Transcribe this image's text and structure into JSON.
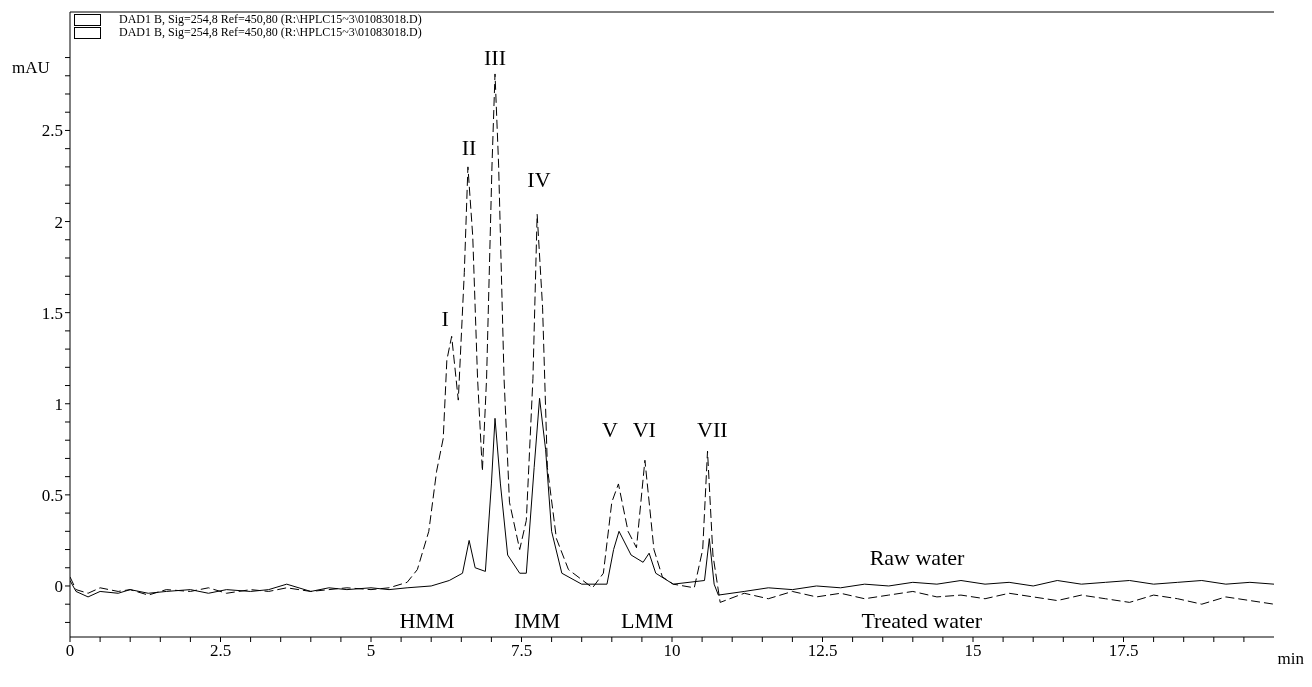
{
  "chart_data": {
    "type": "line",
    "xlabel": "min",
    "ylabel": "mAU",
    "legend": "top left",
    "grid": false,
    "marker": "none",
    "xlim": [
      0,
      20
    ],
    "ylim": [
      -0.28,
      3.15
    ],
    "xticks": [
      0,
      {
        "value": 0.5,
        "label": null
      },
      {
        "value": 1,
        "label": null
      },
      {
        "value": 1.5,
        "label": null
      },
      {
        "value": 2,
        "label": null
      },
      2.5,
      {
        "value": 3,
        "label": null
      },
      {
        "value": 3.5,
        "label": null
      },
      {
        "value": 4,
        "label": null
      },
      {
        "value": 4.5,
        "label": null
      },
      5,
      {
        "value": 5.5,
        "label": null
      },
      {
        "value": 6,
        "label": null
      },
      {
        "value": 6.5,
        "label": null
      },
      {
        "value": 7,
        "label": null
      },
      7.5,
      {
        "value": 8,
        "label": null
      },
      {
        "value": 8.5,
        "label": null
      },
      {
        "value": 9,
        "label": null
      },
      {
        "value": 9.5,
        "label": null
      },
      10,
      {
        "value": 10.5,
        "label": null
      },
      {
        "value": 11,
        "label": null
      },
      {
        "value": 11.5,
        "label": null
      },
      {
        "value": 12,
        "label": null
      },
      12.5,
      {
        "value": 13,
        "label": null
      },
      {
        "value": 13.5,
        "label": null
      },
      {
        "value": 14,
        "label": null
      },
      {
        "value": 14.5,
        "label": null
      },
      15,
      {
        "value": 15.5,
        "label": null
      },
      {
        "value": 16,
        "label": null
      },
      {
        "value": 16.5,
        "label": null
      },
      {
        "value": 17,
        "label": null
      },
      17.5,
      {
        "value": 18,
        "label": null
      },
      {
        "value": 18.5,
        "label": null
      },
      {
        "value": 19,
        "label": null
      },
      {
        "value": 19.5,
        "label": null
      }
    ],
    "yticks": [
      {
        "value": -0.2,
        "label": null
      },
      {
        "value": -0.1,
        "label": null
      },
      0,
      {
        "value": 0.1,
        "label": null
      },
      {
        "value": 0.2,
        "label": null
      },
      {
        "value": 0.3,
        "label": null
      },
      {
        "value": 0.4,
        "label": null
      },
      0.5,
      {
        "value": 0.6,
        "label": null
      },
      {
        "value": 0.7,
        "label": null
      },
      {
        "value": 0.8,
        "label": null
      },
      {
        "value": 0.9,
        "label": null
      },
      1,
      {
        "value": 1.1,
        "label": null
      },
      {
        "value": 1.2,
        "label": null
      },
      {
        "value": 1.3,
        "label": null
      },
      {
        "value": 1.4,
        "label": null
      },
      1.5,
      {
        "value": 1.6,
        "label": null
      },
      {
        "value": 1.7,
        "label": null
      },
      {
        "value": 1.8,
        "label": null
      },
      {
        "value": 1.9,
        "label": null
      },
      2,
      {
        "value": 2.1,
        "label": null
      },
      {
        "value": 2.2,
        "label": null
      },
      {
        "value": 2.3,
        "label": null
      },
      {
        "value": 2.4,
        "label": null
      },
      2.5,
      {
        "value": 2.6,
        "label": null
      },
      {
        "value": 2.7,
        "label": null
      },
      {
        "value": 2.8,
        "label": null
      },
      {
        "value": 2.9,
        "label": null
      }
    ],
    "series": [
      {
        "name": "DAD1 B, Sig=254,8 Ref=450,80 (R:\\HPLC15~3\\01083018.D)",
        "color": "#000000",
        "line_style": "dashed",
        "x": [
          0,
          0.1,
          0.3,
          0.5,
          0.8,
          1.0,
          1.3,
          1.6,
          2.0,
          2.3,
          2.6,
          3.0,
          3.3,
          3.6,
          4.0,
          4.3,
          4.6,
          5.0,
          5.3,
          5.6,
          5.77,
          5.96,
          6.09,
          6.2,
          6.26,
          6.34,
          6.45,
          6.55,
          6.61,
          6.69,
          6.77,
          6.85,
          6.92,
          7.01,
          7.06,
          7.12,
          7.21,
          7.3,
          7.47,
          7.58,
          7.69,
          7.76,
          7.85,
          7.93,
          8.08,
          8.28,
          8.68,
          8.86,
          9.0,
          9.11,
          9.27,
          9.41,
          9.55,
          9.7,
          9.84,
          10.02,
          10.37,
          10.51,
          10.59,
          10.68,
          10.8,
          11.2,
          11.6,
          12.0,
          12.4,
          12.8,
          13.2,
          13.6,
          14.0,
          14.4,
          14.8,
          15.2,
          15.6,
          16.0,
          16.4,
          16.8,
          17.2,
          17.6,
          18.0,
          18.4,
          18.8,
          19.2,
          19.6,
          20
        ],
        "values": [
          0.05,
          -0.02,
          -0.04,
          -0.01,
          -0.03,
          -0.02,
          -0.05,
          -0.02,
          -0.03,
          -0.01,
          -0.04,
          -0.02,
          -0.03,
          -0.01,
          -0.03,
          -0.02,
          -0.01,
          -0.02,
          -0.01,
          0.02,
          0.09,
          0.3,
          0.63,
          0.81,
          1.24,
          1.37,
          1.02,
          1.72,
          2.3,
          1.92,
          1.14,
          0.63,
          1.14,
          2.31,
          2.81,
          2.31,
          1.14,
          0.46,
          0.2,
          0.36,
          1.14,
          2.04,
          1.53,
          0.65,
          0.26,
          0.09,
          -0.01,
          0.07,
          0.46,
          0.56,
          0.3,
          0.21,
          0.69,
          0.2,
          0.05,
          0.01,
          -0.01,
          0.2,
          0.74,
          0.17,
          -0.09,
          -0.04,
          -0.07,
          -0.03,
          -0.06,
          -0.04,
          -0.07,
          -0.05,
          -0.03,
          -0.06,
          -0.05,
          -0.07,
          -0.04,
          -0.06,
          -0.08,
          -0.05,
          -0.07,
          -0.09,
          -0.05,
          -0.07,
          -0.1,
          -0.06,
          -0.08,
          -0.1
        ]
      },
      {
        "name": "DAD1 B, Sig=254,8 Ref=450,80 (R:\\HPLC15~3\\01083018.D)",
        "color": "#000000",
        "line_style": "solid",
        "x": [
          0,
          0.1,
          0.3,
          0.5,
          0.8,
          1.0,
          1.3,
          1.6,
          2.0,
          2.3,
          2.6,
          3.0,
          3.3,
          3.6,
          4.0,
          4.3,
          4.6,
          5.0,
          5.3,
          5.6,
          6.0,
          6.3,
          6.52,
          6.63,
          6.73,
          6.9,
          7.0,
          7.06,
          7.15,
          7.27,
          7.47,
          7.58,
          7.71,
          7.8,
          7.9,
          8.0,
          8.17,
          8.5,
          8.92,
          9.03,
          9.12,
          9.32,
          9.52,
          9.62,
          9.73,
          10.02,
          10.54,
          10.62,
          10.7,
          10.77,
          11.2,
          11.6,
          12.0,
          12.4,
          12.8,
          13.2,
          13.6,
          14.0,
          14.4,
          14.8,
          15.2,
          15.6,
          16.0,
          16.4,
          16.8,
          17.2,
          17.6,
          18.0,
          18.4,
          18.8,
          19.2,
          19.6,
          20
        ],
        "values": [
          0.03,
          -0.03,
          -0.06,
          -0.03,
          -0.04,
          -0.02,
          -0.04,
          -0.03,
          -0.02,
          -0.04,
          -0.02,
          -0.03,
          -0.02,
          0.01,
          -0.03,
          -0.01,
          -0.02,
          -0.01,
          -0.02,
          -0.01,
          0.0,
          0.03,
          0.07,
          0.25,
          0.1,
          0.08,
          0.56,
          0.92,
          0.56,
          0.17,
          0.07,
          0.07,
          0.65,
          1.03,
          0.75,
          0.3,
          0.07,
          0.01,
          0.01,
          0.2,
          0.3,
          0.17,
          0.13,
          0.18,
          0.07,
          0.01,
          0.03,
          0.26,
          0.01,
          -0.05,
          -0.03,
          -0.01,
          -0.02,
          0.0,
          -0.01,
          0.01,
          0.0,
          0.02,
          0.01,
          0.03,
          0.01,
          0.02,
          0.0,
          0.03,
          0.01,
          0.02,
          0.03,
          0.01,
          0.02,
          0.03,
          0.01,
          0.02,
          0.01
        ]
      }
    ],
    "annotations": [
      "I",
      "II",
      "III",
      "IV",
      "V",
      "VI",
      "VII",
      "HMM",
      "IMM",
      "LMM",
      "Raw water",
      "Treated water"
    ]
  }
}
